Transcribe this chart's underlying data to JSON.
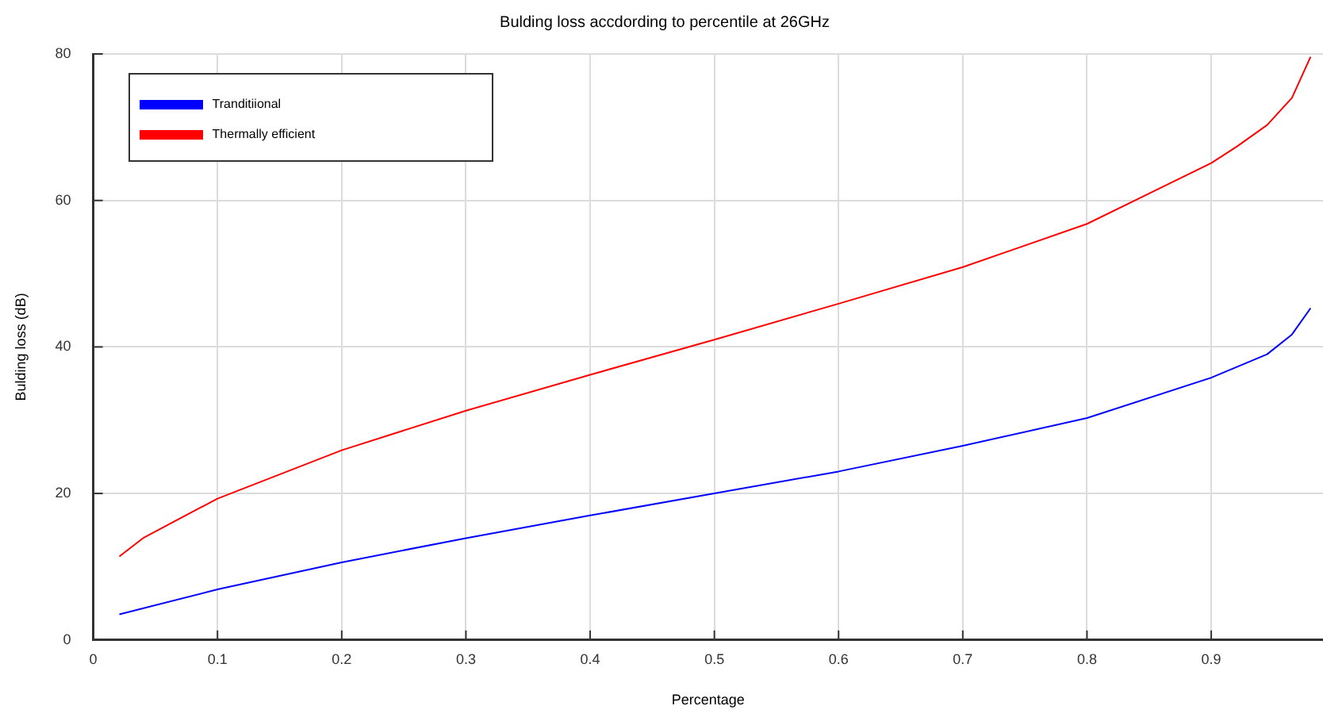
{
  "chart_data": {
    "type": "line",
    "title": "Bulding loss accdording to percentile at 26GHz",
    "xlabel": "Percentage",
    "ylabel": "Bulding loss (dB)",
    "xlim": [
      0,
      0.99
    ],
    "xticks": [
      0,
      0.1,
      0.2,
      0.3,
      0.4,
      0.5,
      0.6,
      0.7,
      0.8,
      0.9
    ],
    "ylim": [
      0,
      80
    ],
    "yticks": [
      0,
      20,
      40,
      60,
      80
    ],
    "grid": true,
    "legend": "top left",
    "marker": "none",
    "line_style": "solid",
    "series": [
      {
        "name": "Tranditiional",
        "color": "#0000ff",
        "x": [
          0.021,
          0.1,
          0.2,
          0.3,
          0.4,
          0.5,
          0.6,
          0.7,
          0.8,
          0.9,
          0.945,
          0.965,
          0.98
        ],
        "values": [
          3.5,
          6.9,
          10.6,
          13.9,
          17.0,
          20.0,
          23.0,
          26.5,
          30.3,
          35.8,
          39.0,
          41.7,
          45.3
        ]
      },
      {
        "name": "Thermally efficient",
        "color": "#ff0000",
        "x": [
          0.021,
          0.04,
          0.1,
          0.2,
          0.3,
          0.4,
          0.5,
          0.6,
          0.7,
          0.8,
          0.9,
          0.921,
          0.945,
          0.965,
          0.98
        ],
        "values": [
          11.4,
          13.9,
          19.3,
          25.9,
          31.3,
          36.2,
          41.0,
          45.9,
          50.9,
          56.8,
          65.1,
          67.4,
          70.3,
          74.0,
          79.6
        ]
      }
    ]
  }
}
